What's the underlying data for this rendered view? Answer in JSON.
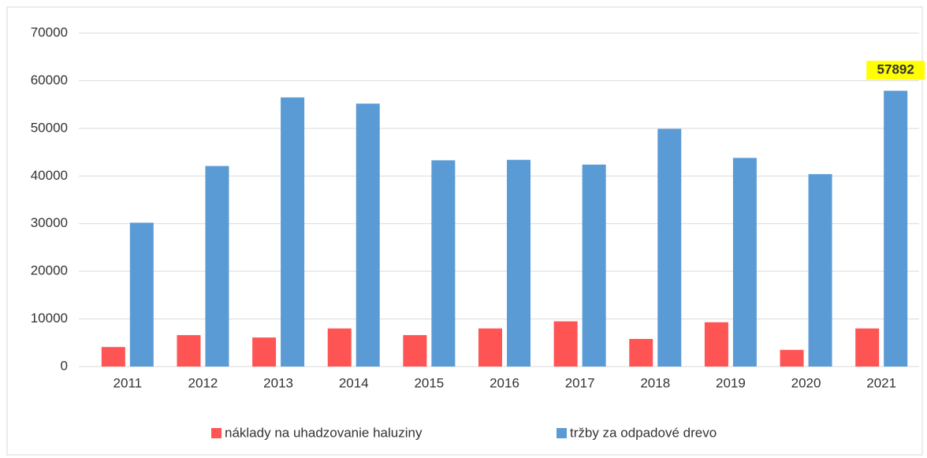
{
  "chart_data": {
    "type": "bar",
    "categories": [
      "2011",
      "2012",
      "2013",
      "2014",
      "2015",
      "2016",
      "2017",
      "2018",
      "2019",
      "2020",
      "2021"
    ],
    "series": [
      {
        "name": "náklady na uhadzovanie haluziny",
        "color": "#ff5454",
        "values": [
          4100,
          6600,
          6100,
          8000,
          6600,
          8000,
          9500,
          5800,
          9300,
          3500,
          8000
        ]
      },
      {
        "name": "tržby za odpadové drevo",
        "color": "#5b9bd5",
        "values": [
          30200,
          42100,
          56500,
          55200,
          43300,
          43400,
          42400,
          49900,
          43800,
          40400,
          57892
        ],
        "value_labels": [
          null,
          null,
          null,
          null,
          null,
          null,
          null,
          null,
          null,
          null,
          "57892"
        ]
      }
    ],
    "ylim": [
      0,
      70000
    ],
    "yticks": [
      0,
      10000,
      20000,
      30000,
      40000,
      50000,
      60000,
      70000
    ],
    "grid": true,
    "legend": "bottom"
  }
}
